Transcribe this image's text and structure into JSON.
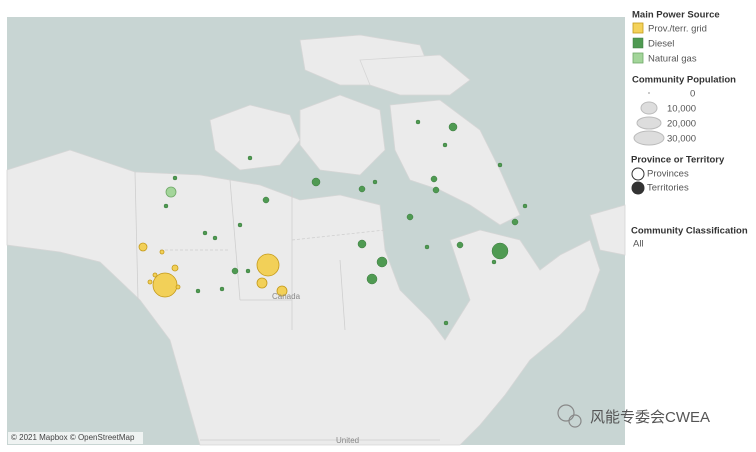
{
  "legend": {
    "power_source": {
      "title": "Main Power Source",
      "items": [
        "Prov./terr. grid",
        "Diesel",
        "Natural gas"
      ]
    },
    "population": {
      "title": "Community Population",
      "items": [
        "0",
        "10,000",
        "20,000",
        "30,000"
      ]
    },
    "province": {
      "title": "Province or Territory",
      "items": [
        "Provinces",
        "Territories"
      ]
    },
    "classification": {
      "title": "Community Classification",
      "value": "All"
    }
  },
  "map": {
    "labels": [
      "Canada",
      "United"
    ],
    "attribution": "© 2021 Mapbox © OpenStreetMap"
  },
  "watermark": "风能专委会CWEA"
}
